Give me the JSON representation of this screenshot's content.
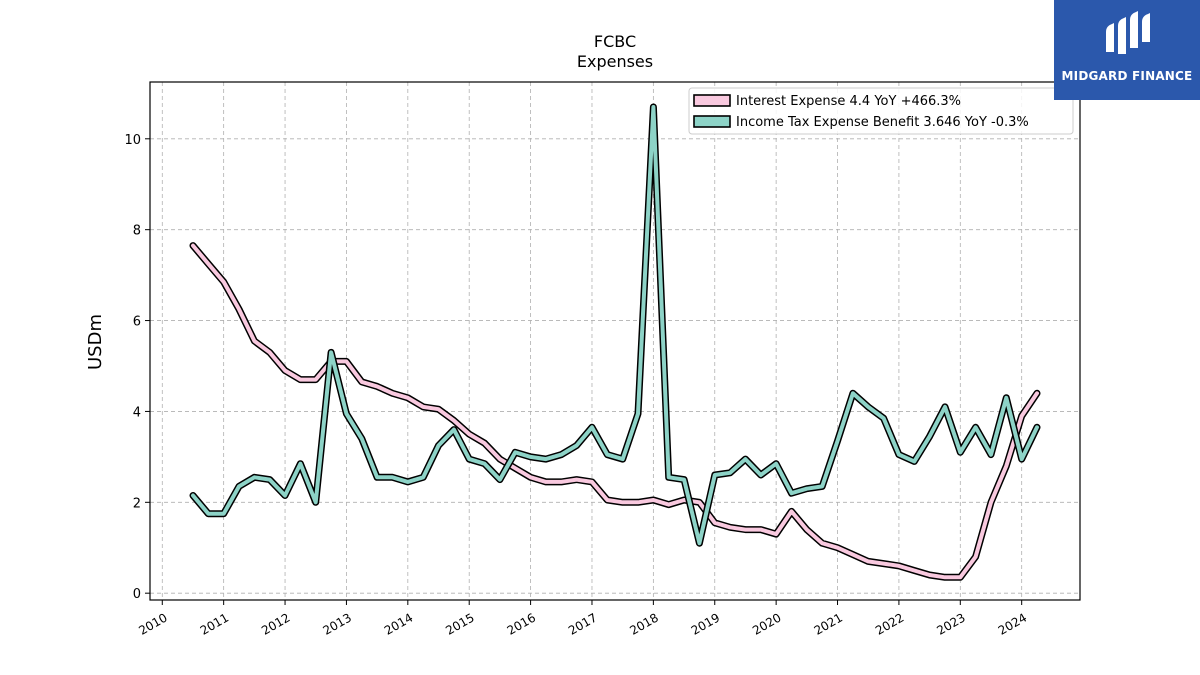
{
  "chart_data": {
    "type": "line",
    "title": "FCBC",
    "subtitle": "Expenses",
    "ylabel": "USDm",
    "xlabel": "",
    "xlim": [
      2009.8,
      2024.95
    ],
    "ylim": [
      -0.15,
      11.25
    ],
    "x_ticks": [
      2010,
      2011,
      2012,
      2013,
      2014,
      2015,
      2016,
      2017,
      2018,
      2019,
      2020,
      2021,
      2022,
      2023,
      2024
    ],
    "y_ticks": [
      0,
      2,
      4,
      6,
      8,
      10
    ],
    "grid": true,
    "legend_position": "top-right",
    "series": [
      {
        "name": "Interest Expense  4.4 YoY +466.3%",
        "color": "#f9c9df",
        "x": [
          2010.5,
          2010.75,
          2011.0,
          2011.25,
          2011.5,
          2011.75,
          2012.0,
          2012.25,
          2012.5,
          2012.75,
          2013.0,
          2013.25,
          2013.5,
          2013.75,
          2014.0,
          2014.25,
          2014.5,
          2014.75,
          2015.0,
          2015.25,
          2015.5,
          2015.75,
          2016.0,
          2016.25,
          2016.5,
          2016.75,
          2017.0,
          2017.25,
          2017.5,
          2017.75,
          2018.0,
          2018.25,
          2018.5,
          2018.75,
          2019.0,
          2019.25,
          2019.5,
          2019.75,
          2020.0,
          2020.25,
          2020.5,
          2020.75,
          2021.0,
          2021.25,
          2021.5,
          2021.75,
          2022.0,
          2022.25,
          2022.5,
          2022.75,
          2023.0,
          2023.25,
          2023.5,
          2023.75,
          2024.0,
          2024.25
        ],
        "values": [
          7.65,
          7.25,
          6.85,
          6.25,
          5.55,
          5.3,
          4.9,
          4.7,
          4.7,
          5.1,
          5.1,
          4.65,
          4.55,
          4.4,
          4.3,
          4.1,
          4.05,
          3.8,
          3.5,
          3.3,
          2.95,
          2.75,
          2.55,
          2.45,
          2.45,
          2.5,
          2.45,
          2.05,
          2.0,
          2.0,
          2.05,
          1.95,
          2.05,
          2.0,
          1.55,
          1.45,
          1.4,
          1.4,
          1.3,
          1.8,
          1.4,
          1.1,
          1.0,
          0.85,
          0.7,
          0.65,
          0.6,
          0.5,
          0.4,
          0.35,
          0.35,
          0.8,
          2.0,
          2.8,
          3.9,
          4.4
        ]
      },
      {
        "name": "Income Tax Expense Benefit  3.646 YoY -0.3%",
        "color": "#8dd3c7",
        "x": [
          2010.5,
          2010.75,
          2011.0,
          2011.25,
          2011.5,
          2011.75,
          2012.0,
          2012.25,
          2012.5,
          2012.75,
          2013.0,
          2013.25,
          2013.5,
          2013.75,
          2014.0,
          2014.25,
          2014.5,
          2014.75,
          2015.0,
          2015.25,
          2015.5,
          2015.75,
          2016.0,
          2016.25,
          2016.5,
          2016.75,
          2017.0,
          2017.25,
          2017.5,
          2017.75,
          2018.0,
          2018.25,
          2018.5,
          2018.75,
          2019.0,
          2019.25,
          2019.5,
          2019.75,
          2020.0,
          2020.25,
          2020.5,
          2020.75,
          2021.0,
          2021.25,
          2021.5,
          2021.75,
          2022.0,
          2022.25,
          2022.5,
          2022.75,
          2023.0,
          2023.25,
          2023.5,
          2023.75,
          2024.0,
          2024.25
        ],
        "values": [
          2.15,
          1.75,
          1.75,
          2.35,
          2.55,
          2.5,
          2.15,
          2.85,
          2.0,
          5.3,
          3.95,
          3.4,
          2.55,
          2.55,
          2.45,
          2.55,
          3.25,
          3.6,
          2.95,
          2.85,
          2.5,
          3.1,
          3.0,
          2.95,
          3.05,
          3.25,
          3.65,
          3.05,
          2.95,
          3.95,
          10.7,
          2.55,
          2.5,
          1.1,
          2.6,
          2.65,
          2.95,
          2.6,
          2.85,
          2.2,
          2.3,
          2.35,
          3.35,
          4.4,
          4.1,
          3.85,
          3.05,
          2.9,
          3.45,
          4.1,
          3.1,
          3.65,
          3.05,
          4.3,
          2.95,
          3.65
        ]
      }
    ]
  },
  "logo": {
    "text": "MIDGARD FINANCE",
    "background": "#2b58ac"
  }
}
